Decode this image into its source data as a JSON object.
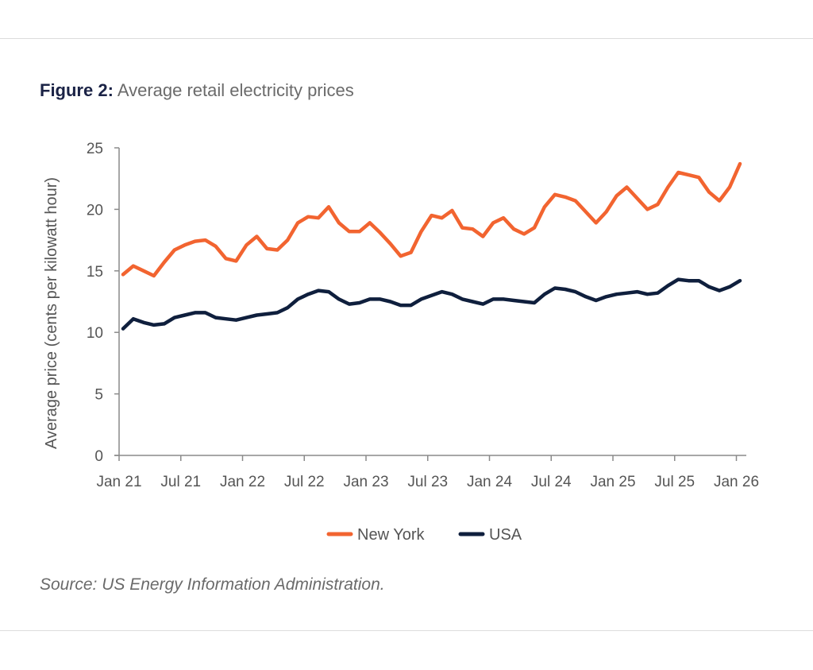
{
  "figure": {
    "label": "Figure 2:",
    "title": "Average retail electricity prices",
    "source": "Source: US Energy Information Administration."
  },
  "chart_data": {
    "type": "line",
    "title": "Figure 2: Average retail electricity prices",
    "xlabel": "",
    "ylabel": "Average price (cents per kilowatt hour)",
    "ylim": [
      0,
      25
    ],
    "yticks": [
      0,
      5,
      10,
      15,
      20,
      25
    ],
    "xtick_labels": [
      "Jan 21",
      "Jul 21",
      "Jan 22",
      "Jul 22",
      "Jan 23",
      "Jul 23",
      "Jan 24",
      "Jul 24",
      "Jan 25",
      "Jul 25",
      "Jan 26"
    ],
    "x_start": "Jan 2021",
    "x_end": "Jan 2026",
    "frequency": "monthly",
    "grid": false,
    "legend_position": "bottom-center",
    "series": [
      {
        "name": "New York",
        "color": "#F26430",
        "values": [
          14.7,
          15.4,
          15.0,
          14.6,
          15.7,
          16.7,
          17.1,
          17.4,
          17.5,
          17.0,
          16.0,
          15.8,
          17.1,
          17.8,
          16.8,
          16.7,
          17.5,
          18.9,
          19.4,
          19.3,
          20.2,
          18.9,
          18.2,
          18.2,
          18.9,
          18.1,
          17.2,
          16.2,
          16.5,
          18.2,
          19.5,
          19.3,
          19.9,
          18.5,
          18.4,
          17.8,
          18.9,
          19.3,
          18.4,
          18.0,
          18.5,
          20.2,
          21.2,
          21.0,
          20.7,
          19.8,
          18.9,
          19.8,
          21.1,
          21.8,
          20.9,
          20.0,
          20.4,
          21.8,
          23.0,
          22.8,
          22.6,
          21.4,
          20.7,
          21.8,
          23.7
        ]
      },
      {
        "name": "USA",
        "color": "#0F1F3D",
        "values": [
          10.3,
          11.1,
          10.8,
          10.6,
          10.7,
          11.2,
          11.4,
          11.6,
          11.6,
          11.2,
          11.1,
          11.0,
          11.2,
          11.4,
          11.5,
          11.6,
          12.0,
          12.7,
          13.1,
          13.4,
          13.3,
          12.7,
          12.3,
          12.4,
          12.7,
          12.7,
          12.5,
          12.2,
          12.2,
          12.7,
          13.0,
          13.3,
          13.1,
          12.7,
          12.5,
          12.3,
          12.7,
          12.7,
          12.6,
          12.5,
          12.4,
          13.1,
          13.6,
          13.5,
          13.3,
          12.9,
          12.6,
          12.9,
          13.1,
          13.2,
          13.3,
          13.1,
          13.2,
          13.8,
          14.3,
          14.2,
          14.2,
          13.7,
          13.4,
          13.7,
          14.2
        ]
      }
    ]
  }
}
